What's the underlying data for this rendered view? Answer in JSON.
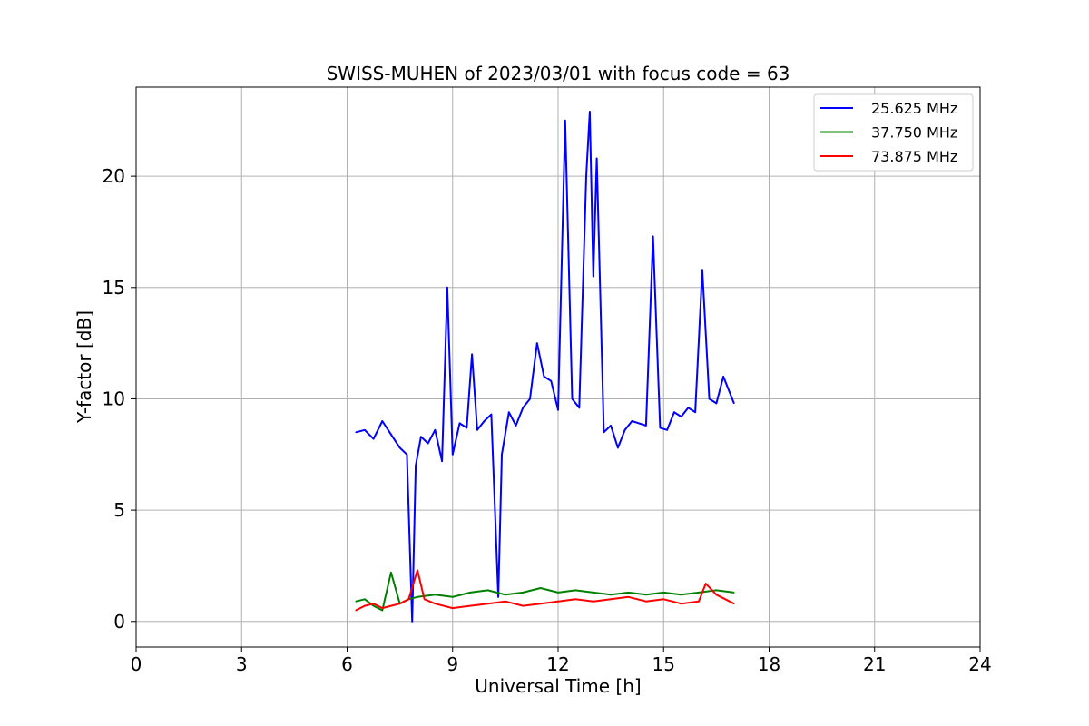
{
  "chart_data": {
    "type": "line",
    "title": "SWISS-MUHEN of 2023/03/01 with focus code = 63",
    "xlabel": "Universal Time [h]",
    "ylabel": "Y-factor [dB]",
    "xlim": [
      0,
      24
    ],
    "ylim": [
      -1.15,
      24
    ],
    "xticks": [
      0,
      3,
      6,
      9,
      12,
      15,
      18,
      21,
      24
    ],
    "yticks": [
      0,
      5,
      10,
      15,
      20
    ],
    "grid": true,
    "legend_position": "top-right",
    "series": [
      {
        "name": "25.625 MHz",
        "color": "#0000ff",
        "x": [
          6.25,
          6.5,
          6.75,
          7.0,
          7.25,
          7.5,
          7.7,
          7.85,
          7.95,
          8.1,
          8.3,
          8.5,
          8.7,
          8.85,
          9.0,
          9.2,
          9.4,
          9.55,
          9.7,
          9.9,
          10.1,
          10.3,
          10.4,
          10.6,
          10.8,
          11.0,
          11.2,
          11.4,
          11.6,
          11.8,
          12.0,
          12.2,
          12.4,
          12.6,
          12.8,
          12.9,
          13.0,
          13.1,
          13.3,
          13.5,
          13.7,
          13.9,
          14.1,
          14.3,
          14.5,
          14.7,
          14.9,
          15.1,
          15.3,
          15.5,
          15.7,
          15.9,
          16.1,
          16.3,
          16.5,
          16.7,
          16.9,
          17.0
        ],
        "y": [
          8.5,
          8.6,
          8.2,
          9.0,
          8.4,
          7.8,
          7.5,
          0.0,
          7.0,
          8.3,
          8.0,
          8.6,
          7.2,
          15.0,
          7.5,
          8.9,
          8.7,
          12.0,
          8.6,
          9.0,
          9.3,
          1.1,
          7.5,
          9.4,
          8.8,
          9.6,
          10.0,
          12.5,
          11.0,
          10.8,
          9.5,
          22.5,
          10.0,
          9.6,
          20.0,
          22.9,
          15.5,
          20.8,
          8.5,
          8.8,
          7.8,
          8.6,
          9.0,
          8.9,
          8.8,
          17.3,
          8.7,
          8.6,
          9.4,
          9.2,
          9.6,
          9.4,
          15.8,
          10.0,
          9.8,
          11.0,
          10.2,
          9.8
        ]
      },
      {
        "name": "37.750 MHz",
        "color": "#008000",
        "x": [
          6.25,
          6.5,
          6.75,
          7.0,
          7.25,
          7.5,
          7.75,
          8.0,
          8.5,
          9.0,
          9.5,
          10.0,
          10.5,
          11.0,
          11.5,
          12.0,
          12.5,
          13.0,
          13.5,
          14.0,
          14.5,
          15.0,
          15.5,
          16.0,
          16.5,
          17.0
        ],
        "y": [
          0.9,
          1.0,
          0.7,
          0.5,
          2.2,
          0.8,
          1.0,
          1.1,
          1.2,
          1.1,
          1.3,
          1.4,
          1.2,
          1.3,
          1.5,
          1.3,
          1.4,
          1.3,
          1.2,
          1.3,
          1.2,
          1.3,
          1.2,
          1.3,
          1.4,
          1.3
        ]
      },
      {
        "name": "73.875 MHz",
        "color": "#ff0000",
        "x": [
          6.25,
          6.5,
          6.75,
          7.0,
          7.25,
          7.5,
          7.75,
          8.0,
          8.2,
          8.5,
          9.0,
          9.5,
          10.0,
          10.5,
          11.0,
          11.5,
          12.0,
          12.5,
          13.0,
          13.5,
          14.0,
          14.5,
          15.0,
          15.5,
          16.0,
          16.2,
          16.5,
          17.0
        ],
        "y": [
          0.5,
          0.7,
          0.8,
          0.6,
          0.7,
          0.8,
          1.0,
          2.3,
          1.0,
          0.8,
          0.6,
          0.7,
          0.8,
          0.9,
          0.7,
          0.8,
          0.9,
          1.0,
          0.9,
          1.0,
          1.1,
          0.9,
          1.0,
          0.8,
          0.9,
          1.7,
          1.2,
          0.8
        ]
      }
    ]
  }
}
